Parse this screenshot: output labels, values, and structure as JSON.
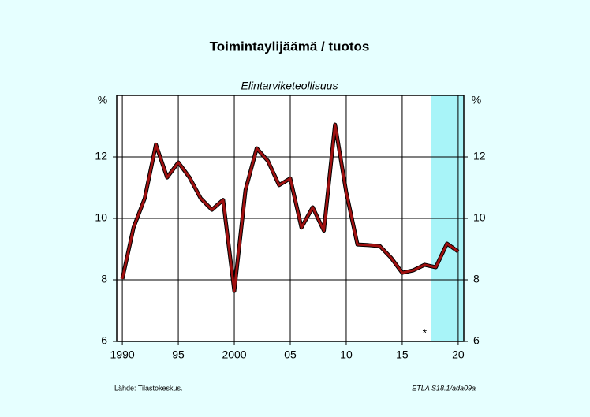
{
  "chart_data": {
    "type": "line",
    "title": "Toimintaylijäämä / tuotos",
    "subtitle": "Elintarviketeollisuus",
    "y_unit": "%",
    "x": [
      1990,
      1991,
      1992,
      1993,
      1994,
      1995,
      1996,
      1997,
      1998,
      1999,
      2000,
      2001,
      2002,
      2003,
      2004,
      2005,
      2006,
      2007,
      2008,
      2009,
      2010,
      2011,
      2012,
      2013,
      2014,
      2015,
      2016,
      2017,
      2018,
      2019,
      2020
    ],
    "series": [
      {
        "name": "Toimintaylijäämä / tuotos",
        "color": "#a01010",
        "values": [
          8.03,
          9.7,
          10.65,
          12.4,
          11.33,
          11.82,
          11.33,
          10.65,
          10.28,
          10.6,
          7.64,
          10.92,
          12.28,
          11.87,
          11.08,
          11.3,
          9.7,
          10.36,
          9.6,
          13.05,
          10.85,
          9.15,
          9.13,
          9.1,
          8.72,
          8.23,
          8.31,
          8.49,
          8.41,
          9.18,
          8.92
        ]
      }
    ],
    "xlim": [
      1989.5,
      2020.5
    ],
    "ylim": [
      6,
      14
    ],
    "xticks": [
      1990,
      {
        "value": 1995,
        "label": "95"
      },
      2000,
      {
        "value": 2005,
        "label": "05"
      },
      {
        "value": 2010,
        "label": "10"
      },
      {
        "value": 2015,
        "label": "15"
      },
      {
        "value": 2020,
        "label": "20"
      }
    ],
    "yticks": [
      6,
      8,
      10,
      12
    ],
    "grid": true,
    "forecast_start": 2017.6,
    "forecast_color": "#a8f4f8",
    "annotation": {
      "text": "*",
      "x": 2017,
      "y": 6.25
    },
    "source": "Lähde:   Tilastokeskus.",
    "code": "ETLA S18.1/ada09a"
  }
}
